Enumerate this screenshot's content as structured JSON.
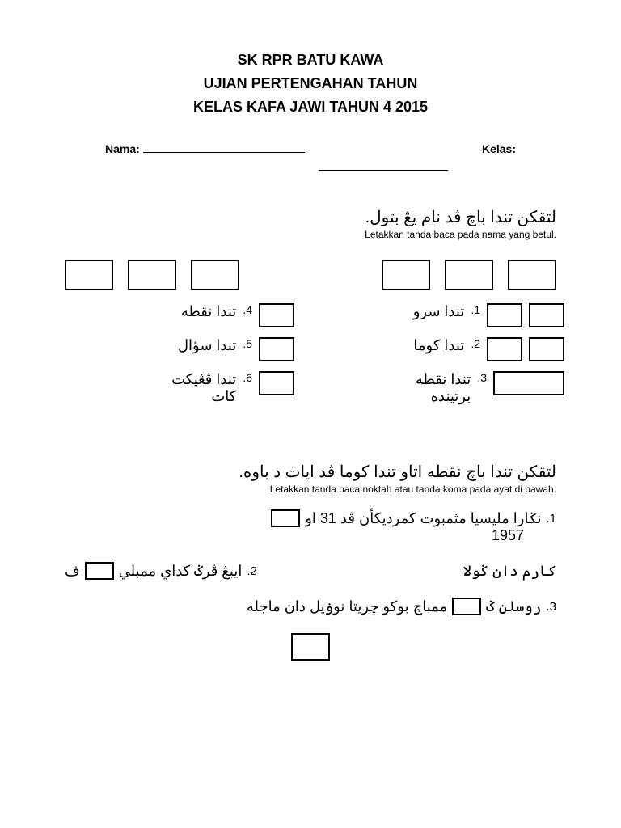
{
  "header": {
    "line1": "SK RPR BATU KAWA",
    "line2": "UJIAN PERTENGAHAN TAHUN",
    "line3": "KELAS KAFA JAWI TAHUN 4 2015"
  },
  "labels": {
    "nama": "Nama:",
    "kelas": "Kelas:"
  },
  "section1": {
    "jawi": "لتقکن تندا باچ ڤد نام يڠ بتول.",
    "latin": "Letakkan tanda baca pada nama yang betul.",
    "right": [
      {
        "num": ".1",
        "text": "تندا سرو"
      },
      {
        "num": ".2",
        "text": "تندا کوما"
      },
      {
        "num": ".3",
        "text": "تندا نقطه",
        "text2": "برتينده"
      }
    ],
    "left": [
      {
        "num": ".4",
        "text": "تندا نقطه"
      },
      {
        "num": ".5",
        "text": "تندا سؤال"
      },
      {
        "num": ".6",
        "text": "تندا ڤڠيکت",
        "text2": "کات"
      }
    ]
  },
  "section2": {
    "jawi": "لتقکن تندا باچ نقطه اتاو تندا کوما ڤد ايات د باوه.",
    "latin": "Letakkan tanda baca noktah atau tanda koma pada ayat di bawah.",
    "sentences": [
      {
        "num": ".1",
        "parts_a": "نݢارا مليسيا مثمبوت کمرديکأن ڤد 31 او",
        "year": "1957"
      },
      {
        "num": ".2",
        "pre": "کارم دان ݢولا",
        "mid": "ف",
        "post": "ايبڠ ڤرݢ کداي ممبلي"
      },
      {
        "num": ".3",
        "pre": "ممباچ بوکو چريتا نوۏيل دان ماجله",
        "post": "روسلن ݢ"
      }
    ]
  },
  "style": {
    "bg": "#ffffff",
    "text": "#000000",
    "border": "#000000",
    "header_fontsize": 18,
    "body_fontsize": 18,
    "small_fontsize": 12
  }
}
